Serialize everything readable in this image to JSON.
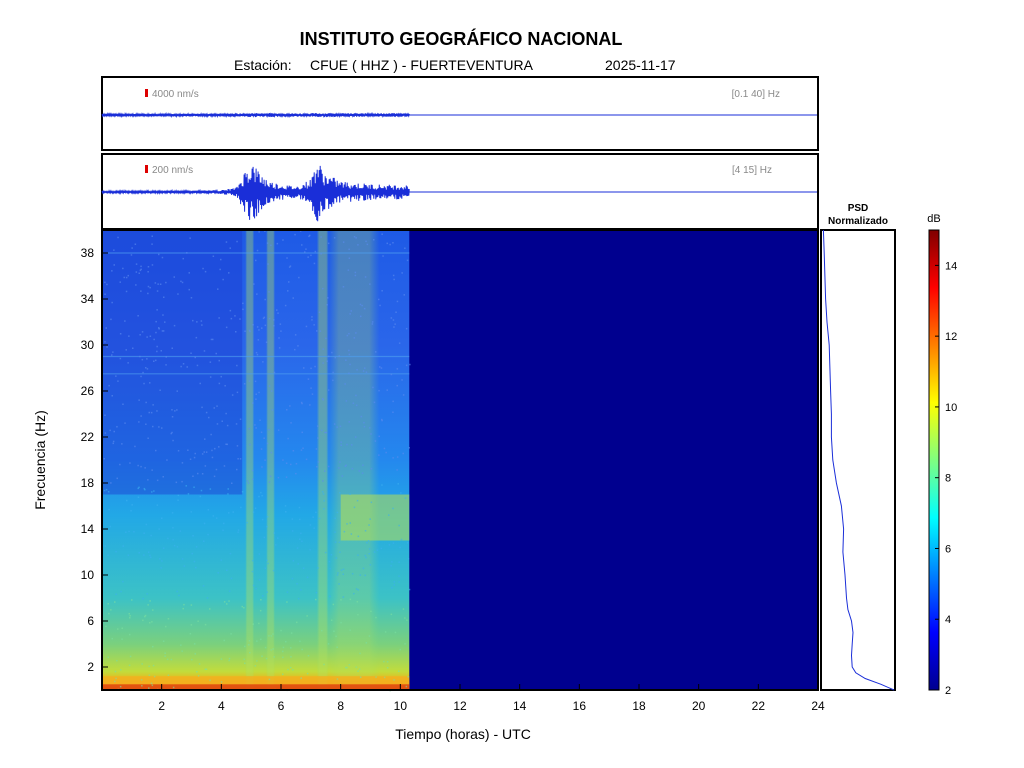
{
  "header": {
    "title": "INSTITUTO GEOGRÁFICO NACIONAL",
    "station_label": "Estación:",
    "station": "CFUE ( HHZ ) - FUERTEVENTURA",
    "date": "2025-11-17"
  },
  "colors": {
    "trace": "#1a2ed8",
    "scale_marker": "#dd0000",
    "no_data": "#00008f"
  },
  "chart_data": [
    {
      "type": "line",
      "name": "seismogram-broadband",
      "scale_label": "4000 nm/s",
      "filter_label": "[0.1 40] Hz",
      "x_range": [
        0,
        24
      ],
      "data_end_hours": 10.3,
      "envelope": {
        "x": [
          0,
          2,
          4,
          4.8,
          5.2,
          6,
          7,
          7.3,
          8,
          9,
          10.3
        ],
        "amplitude": [
          0.04,
          0.04,
          0.04,
          0.05,
          0.06,
          0.05,
          0.05,
          0.06,
          0.05,
          0.05,
          0.05
        ]
      }
    },
    {
      "type": "line",
      "name": "seismogram-filtered",
      "scale_label": "200 nm/s",
      "filter_label": "[4 15] Hz",
      "x_range": [
        0,
        24
      ],
      "data_end_hours": 10.3,
      "envelope": {
        "x": [
          0,
          1,
          2,
          3,
          4,
          4.5,
          4.8,
          5.0,
          5.3,
          5.6,
          6.0,
          6.5,
          7.0,
          7.2,
          7.5,
          8.0,
          8.5,
          9.0,
          9.5,
          10.0,
          10.3
        ],
        "amplitude": [
          0.03,
          0.03,
          0.035,
          0.035,
          0.05,
          0.12,
          0.6,
          0.85,
          0.55,
          0.3,
          0.22,
          0.15,
          0.35,
          0.9,
          0.5,
          0.3,
          0.25,
          0.22,
          0.2,
          0.2,
          0.18
        ]
      }
    },
    {
      "type": "heatmap",
      "name": "spectrogram",
      "xlabel": "Tiempo (horas) - UTC",
      "ylabel": "Frecuencia  (Hz)",
      "x_range": [
        0,
        24
      ],
      "y_range": [
        0,
        40
      ],
      "x_ticks": [
        2,
        4,
        6,
        8,
        10,
        12,
        14,
        16,
        18,
        20,
        22,
        24
      ],
      "y_ticks": [
        2,
        6,
        10,
        14,
        18,
        22,
        26,
        30,
        34,
        38
      ],
      "data_end_hours": 10.3,
      "colorbar": {
        "label": "dB",
        "range": [
          2,
          15
        ],
        "ticks": [
          2,
          4,
          6,
          8,
          10,
          12,
          14
        ],
        "colormap": "jet"
      }
    },
    {
      "type": "line",
      "name": "psd-normalizado",
      "title_line1": "PSD",
      "title_line2": "Normalizado",
      "freq_hz": [
        0,
        0.5,
        1,
        1.5,
        2,
        3,
        4,
        5,
        6,
        7,
        8,
        10,
        12,
        14,
        16,
        18,
        20,
        22,
        24,
        26,
        28,
        30,
        32,
        34,
        36,
        38,
        40
      ],
      "value": [
        1.0,
        0.82,
        0.6,
        0.47,
        0.42,
        0.41,
        0.42,
        0.43,
        0.41,
        0.36,
        0.34,
        0.32,
        0.29,
        0.3,
        0.27,
        0.2,
        0.15,
        0.13,
        0.13,
        0.12,
        0.11,
        0.1,
        0.07,
        0.05,
        0.04,
        0.03,
        0.02
      ]
    }
  ]
}
